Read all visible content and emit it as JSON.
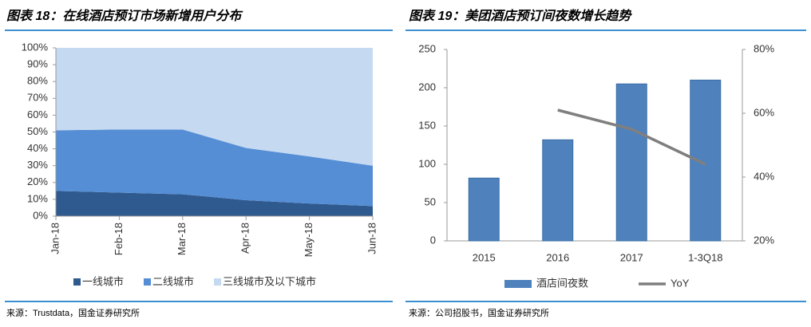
{
  "chart_data": [
    {
      "type": "area",
      "title": "图表 18：在线酒店预订市场新增用户分布",
      "source": "来源：Trustdata，国金证券研究所",
      "categories": [
        "Jan-18",
        "Feb-18",
        "Mar-18",
        "Apr-18",
        "May-18",
        "Jun-18"
      ],
      "series": [
        {
          "name": "一线城市",
          "color": "#2f5a8f",
          "values": [
            15,
            14,
            13,
            9.5,
            7.5,
            6
          ]
        },
        {
          "name": "二线城市",
          "color": "#558ed5",
          "values": [
            36,
            37.5,
            38.5,
            31,
            28,
            24
          ]
        },
        {
          "name": "三线城市及以下城市",
          "color": "#c5d9f1",
          "values": [
            49,
            48.5,
            48.5,
            59.5,
            64.5,
            70
          ]
        }
      ],
      "ylim": [
        0,
        100
      ],
      "yticks": [
        {
          "value": 0,
          "label": "0%"
        },
        {
          "value": 10,
          "label": "10%"
        },
        {
          "value": 20,
          "label": "20%"
        },
        {
          "value": 30,
          "label": "30%"
        },
        {
          "value": 40,
          "label": "40%"
        },
        {
          "value": 50,
          "label": "50%"
        },
        {
          "value": 60,
          "label": "60%"
        },
        {
          "value": 70,
          "label": "70%"
        },
        {
          "value": 80,
          "label": "80%"
        },
        {
          "value": 90,
          "label": "90%"
        },
        {
          "value": 100,
          "label": "100%"
        }
      ],
      "stacked": true,
      "legend": "bottom"
    },
    {
      "type": "bar",
      "title": "图表 19：美团酒店预订间夜数增长趋势",
      "source": "来源：公司招股书，国金证券研究所",
      "categories": [
        "2015",
        "2016",
        "2017",
        "1-3Q18"
      ],
      "series": [
        {
          "name": "酒店间夜数",
          "color": "#4f81bd",
          "values": [
            82,
            132,
            205,
            210
          ]
        },
        {
          "name": "YoY",
          "color": "#7f7f7f",
          "axis": "y2",
          "values": [
            null,
            61,
            55,
            44
          ]
        }
      ],
      "ylim": [
        0,
        250
      ],
      "yticks": [
        0,
        50,
        100,
        150,
        200,
        250
      ],
      "y2lim": [
        20,
        80
      ],
      "y2ticks": [
        {
          "value": 20,
          "label": "20%"
        },
        {
          "value": 40,
          "label": "40%"
        },
        {
          "value": 60,
          "label": "60%"
        },
        {
          "value": 80,
          "label": "80%"
        }
      ],
      "legend": "bottom"
    }
  ]
}
